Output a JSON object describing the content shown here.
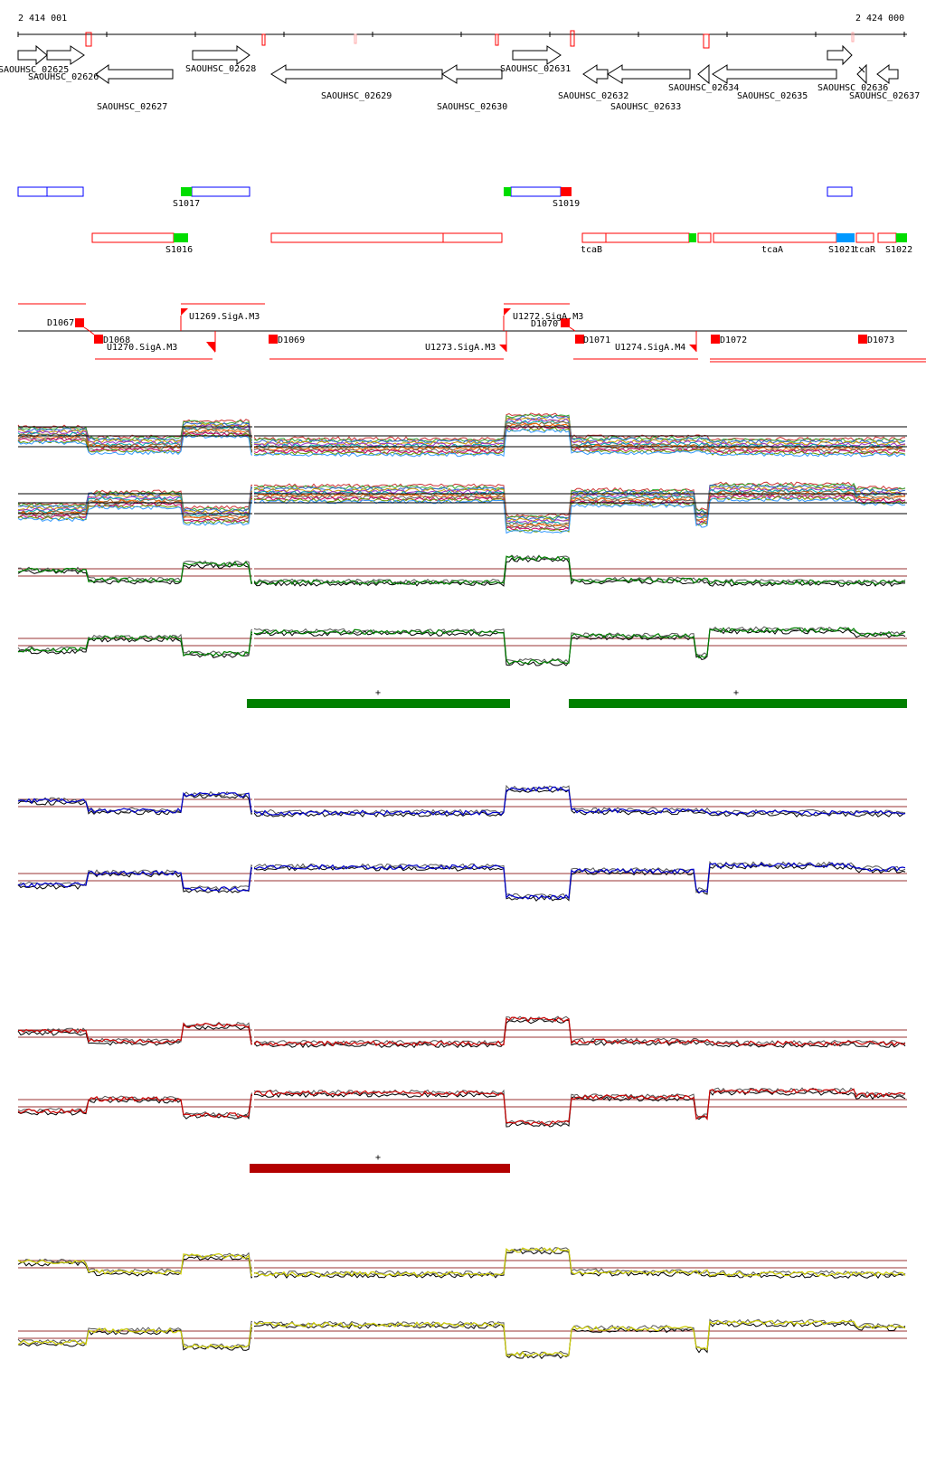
{
  "coordinates": {
    "start": "2 414 001",
    "end": "2 424 000"
  },
  "colors": {
    "up_annot": "#ff0000",
    "down_annot": "#0000ff",
    "gene": "#000000",
    "tss": "#ff0000",
    "terminator": "#00cc00",
    "highlight": "#0099ff",
    "green_track": "#008000",
    "blue_track": "#0000cc",
    "red_track": "#cc0000",
    "yellow_track": "#cccc00",
    "green_bar": "#008000",
    "red_bar": "#b30000",
    "threshold": "#993333"
  },
  "genes": [
    {
      "label": "SAOUHSC_02625"
    },
    {
      "label": "SAOUHSC_02626"
    },
    {
      "label": "SAOUHSC_02627"
    },
    {
      "label": "SAOUHSC_02628"
    },
    {
      "label": "SAOUHSC_02629"
    },
    {
      "label": "SAOUHSC_02630"
    },
    {
      "label": "SAOUHSC_02631"
    },
    {
      "label": "SAOUHSC_02632"
    },
    {
      "label": "SAOUHSC_02633"
    },
    {
      "label": "SAOUHSC_02634"
    },
    {
      "label": "SAOUHSC_02635"
    },
    {
      "label": "SAOUHSC_02636"
    },
    {
      "label": "SAOUHSC_02637"
    }
  ],
  "segments": [
    {
      "label": "S1017"
    },
    {
      "label": "S1019"
    },
    {
      "label": "S1016"
    },
    {
      "label": "tcaB"
    },
    {
      "label": "tcaA"
    },
    {
      "label": "S1021"
    },
    {
      "label": "tcaR"
    },
    {
      "label": "S1022"
    }
  ],
  "features": [
    {
      "label": "D1067"
    },
    {
      "label": "D1068"
    },
    {
      "label": "U1270.SigA.M3"
    },
    {
      "label": "U1269.SigA.M3"
    },
    {
      "label": "D1069"
    },
    {
      "label": "U1273.SigA.M3"
    },
    {
      "label": "U1272.SigA.M3"
    },
    {
      "label": "D1070"
    },
    {
      "label": "D1071"
    },
    {
      "label": "U1274.SigA.M4"
    },
    {
      "label": "D1072"
    },
    {
      "label": "D1073"
    }
  ],
  "bar_labels": {
    "green_1": "+",
    "green_2": "+",
    "red_1": "+"
  }
}
